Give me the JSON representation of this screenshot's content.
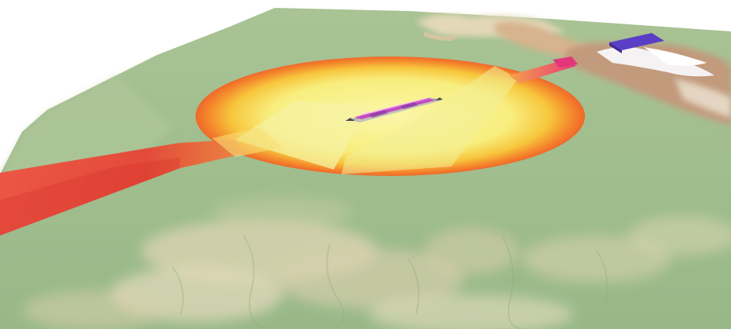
{
  "scene": {
    "view": "3d-perspective-terrain",
    "subject": "airport-obstacle-limitation-surfaces",
    "colors": {
      "sky": "#ffffff",
      "lowland": "#9dbb8c",
      "lowland_light": "#b9cc9c",
      "hills": "#e5dcc0",
      "mountain_brown": "#b8937a",
      "snow": "#f6f4f6",
      "approach_surface": "#f0473a",
      "horizontal_surface_center": "#f7f28c",
      "horizontal_surface_edge": "#f27a2a",
      "transitional_surface": "#f4ef9a",
      "runway": "#d64fd1",
      "far_approach_surface": "#e8407a",
      "distant_surface": "#5b3fc4"
    }
  }
}
